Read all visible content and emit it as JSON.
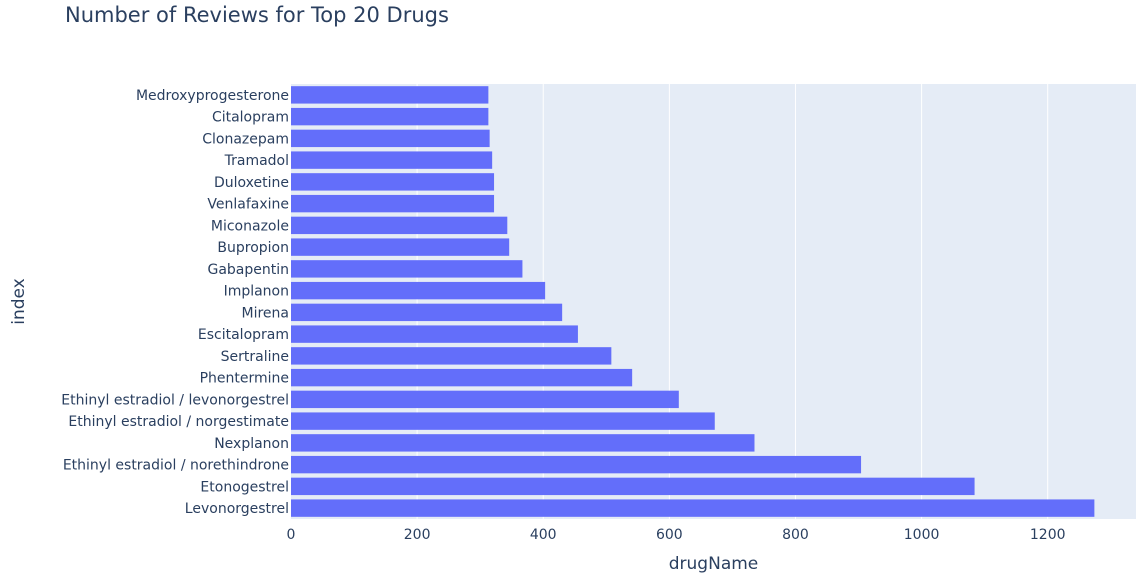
{
  "chart_data": {
    "type": "bar",
    "orientation": "horizontal",
    "title": "Number of Reviews for Top 20 Drugs",
    "xlabel": "drugName",
    "ylabel": "index",
    "xlim": [
      0,
      1340
    ],
    "xticks": [
      0,
      200,
      400,
      600,
      800,
      1000,
      1200
    ],
    "grid": true,
    "bar_color": "#636efa",
    "plot_background": "#e5ecf6",
    "categories": [
      "Levonorgestrel",
      "Etonogestrel",
      "Ethinyl estradiol / norethindrone",
      "Nexplanon",
      "Ethinyl estradiol / norgestimate",
      "Ethinyl estradiol / levonorgestrel",
      "Phentermine",
      "Sertraline",
      "Escitalopram",
      "Mirena",
      "Implanon",
      "Gabapentin",
      "Bupropion",
      "Miconazole",
      "Venlafaxine",
      "Duloxetine",
      "Tramadol",
      "Clonazepam",
      "Citalopram",
      "Medroxyprogesterone"
    ],
    "values": [
      1274,
      1084,
      904,
      735,
      672,
      615,
      541,
      508,
      455,
      430,
      403,
      367,
      346,
      343,
      322,
      322,
      319,
      315,
      313,
      313
    ]
  }
}
